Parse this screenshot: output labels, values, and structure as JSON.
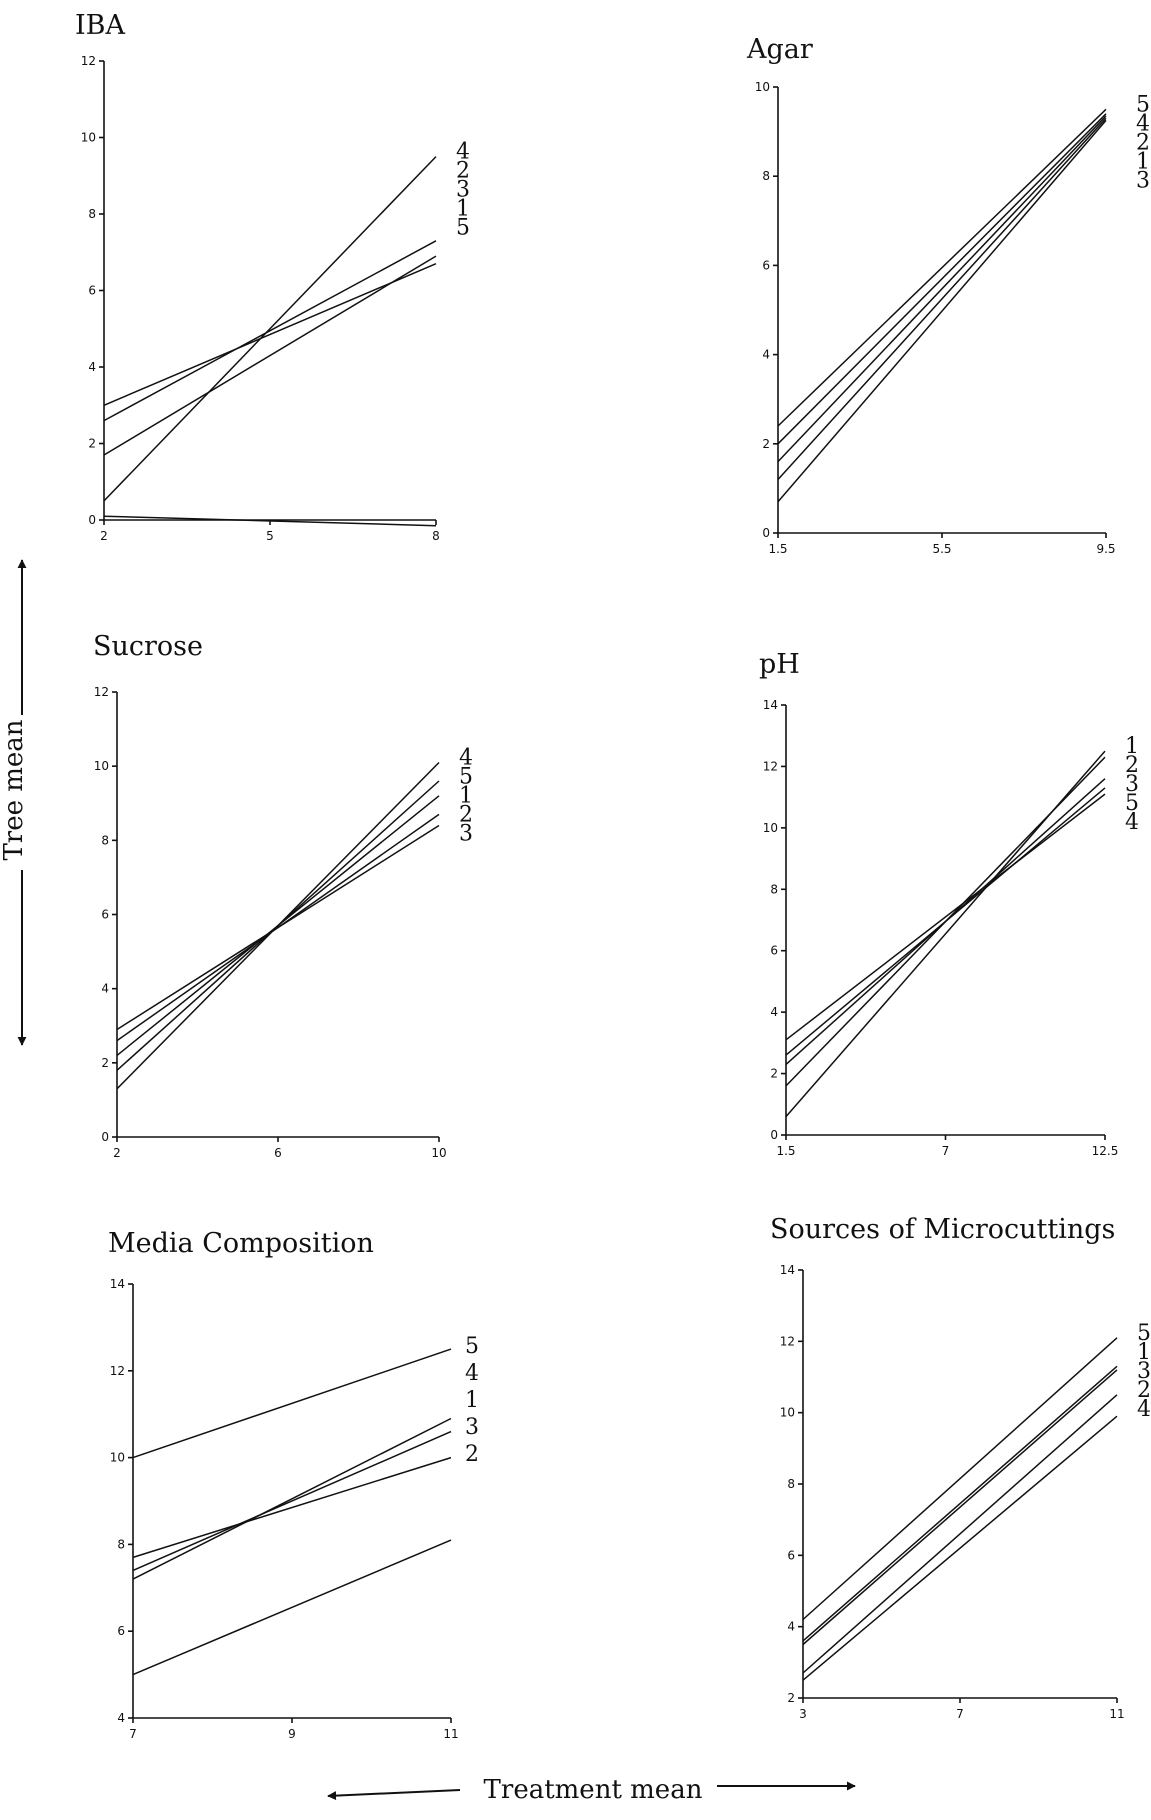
{
  "figure": {
    "ylabel": "Tree mean",
    "xlabel": "Treatment mean"
  },
  "chart_data": [
    {
      "type": "line",
      "title": "IBA",
      "xticks": [
        "2",
        "5",
        "8"
      ],
      "yticks": [
        "0",
        "2",
        "4",
        "6",
        "8",
        "10",
        "12"
      ],
      "xlim": [
        2,
        8
      ],
      "ylim": [
        0,
        12
      ],
      "grid": false,
      "line_labels": [
        "4",
        "2",
        "3",
        "1",
        "5"
      ],
      "series": [
        {
          "label": "4",
          "x": [
            2,
            8
          ],
          "y": [
            0.5,
            9.5
          ]
        },
        {
          "label": "2",
          "x": [
            2,
            8
          ],
          "y": [
            2.6,
            7.3
          ]
        },
        {
          "label": "3",
          "x": [
            2,
            8
          ],
          "y": [
            1.7,
            6.9
          ]
        },
        {
          "label": "1",
          "x": [
            2,
            8
          ],
          "y": [
            3.0,
            6.7
          ]
        },
        {
          "label": "5",
          "x": [
            2,
            8
          ],
          "y": [
            0.1,
            -0.15
          ]
        }
      ]
    },
    {
      "type": "line",
      "title": "Agar",
      "xticks": [
        "1.5",
        "5.5",
        "9.5"
      ],
      "yticks": [
        "0",
        "2",
        "4",
        "6",
        "8",
        "10"
      ],
      "xlim": [
        1.5,
        9.5
      ],
      "ylim": [
        0,
        10
      ],
      "grid": false,
      "line_labels": [
        "5",
        "4",
        "2",
        "1",
        "3"
      ],
      "series": [
        {
          "label": "5",
          "x": [
            1.5,
            9.5
          ],
          "y": [
            2.4,
            9.5
          ]
        },
        {
          "label": "4",
          "x": [
            1.5,
            9.5
          ],
          "y": [
            2.0,
            9.4
          ]
        },
        {
          "label": "2",
          "x": [
            1.5,
            9.5
          ],
          "y": [
            1.6,
            9.35
          ]
        },
        {
          "label": "1",
          "x": [
            1.5,
            9.5
          ],
          "y": [
            1.2,
            9.3
          ]
        },
        {
          "label": "3",
          "x": [
            1.5,
            9.5
          ],
          "y": [
            0.7,
            9.25
          ]
        }
      ]
    },
    {
      "type": "line",
      "title": "Sucrose",
      "xticks": [
        "2",
        "6",
        "10"
      ],
      "yticks": [
        "0",
        "2",
        "4",
        "6",
        "8",
        "10",
        "12"
      ],
      "xlim": [
        2,
        10
      ],
      "ylim": [
        0,
        12
      ],
      "grid": false,
      "line_labels": [
        "4",
        "5",
        "1",
        "2",
        "3"
      ],
      "series": [
        {
          "label": "4",
          "x": [
            2,
            10
          ],
          "y": [
            1.3,
            10.1
          ]
        },
        {
          "label": "5",
          "x": [
            2,
            10
          ],
          "y": [
            1.8,
            9.6
          ]
        },
        {
          "label": "1",
          "x": [
            2,
            10
          ],
          "y": [
            2.2,
            9.2
          ]
        },
        {
          "label": "2",
          "x": [
            2,
            10
          ],
          "y": [
            2.6,
            8.7
          ]
        },
        {
          "label": "3",
          "x": [
            2,
            10
          ],
          "y": [
            2.9,
            8.4
          ]
        }
      ]
    },
    {
      "type": "line",
      "title": "pH",
      "xticks": [
        "1.5",
        "7",
        "12.5"
      ],
      "yticks": [
        "0",
        "2",
        "4",
        "6",
        "8",
        "10",
        "12",
        "14"
      ],
      "xlim": [
        1.5,
        12.5
      ],
      "ylim": [
        0,
        14
      ],
      "grid": false,
      "line_labels": [
        "1",
        "2",
        "3",
        "5",
        "4"
      ],
      "series": [
        {
          "label": "1",
          "x": [
            1.5,
            12.5
          ],
          "y": [
            0.6,
            12.5
          ]
        },
        {
          "label": "2",
          "x": [
            1.5,
            12.5
          ],
          "y": [
            1.6,
            12.3
          ]
        },
        {
          "label": "3",
          "x": [
            1.5,
            12.5
          ],
          "y": [
            2.3,
            11.6
          ]
        },
        {
          "label": "5",
          "x": [
            1.5,
            12.5
          ],
          "y": [
            2.6,
            11.3
          ]
        },
        {
          "label": "4",
          "x": [
            1.5,
            12.5
          ],
          "y": [
            3.1,
            11.1
          ]
        }
      ]
    },
    {
      "type": "line",
      "title": "Media Composition",
      "xticks": [
        "7",
        "9",
        "11"
      ],
      "yticks": [
        "4",
        "6",
        "8",
        "10",
        "12",
        "14"
      ],
      "xlim": [
        7,
        11
      ],
      "ylim": [
        4,
        14
      ],
      "grid": false,
      "line_labels": [
        "5",
        "4",
        "1",
        "3",
        "2"
      ],
      "series": [
        {
          "label": "5",
          "x": [
            7,
            11
          ],
          "y": [
            10.0,
            12.5
          ]
        },
        {
          "label": "1",
          "x": [
            7,
            11
          ],
          "y": [
            7.2,
            10.9
          ]
        },
        {
          "label": "3",
          "x": [
            7,
            11
          ],
          "y": [
            7.4,
            10.6
          ]
        },
        {
          "label": "2",
          "x": [
            7,
            11
          ],
          "y": [
            7.7,
            10.0
          ]
        },
        {
          "label": "",
          "x": [
            7,
            11
          ],
          "y": [
            5.0,
            8.1
          ]
        }
      ]
    },
    {
      "type": "line",
      "title": "Sources of Microcuttings",
      "xticks": [
        "3",
        "7",
        "11"
      ],
      "yticks": [
        "2",
        "4",
        "6",
        "8",
        "10",
        "12",
        "14"
      ],
      "xlim": [
        3,
        11
      ],
      "ylim": [
        2,
        14
      ],
      "grid": false,
      "line_labels": [
        "5",
        "1",
        "3",
        "2",
        "4"
      ],
      "series": [
        {
          "label": "5",
          "x": [
            3,
            11
          ],
          "y": [
            4.2,
            12.1
          ]
        },
        {
          "label": "1",
          "x": [
            3,
            11
          ],
          "y": [
            3.6,
            11.3
          ]
        },
        {
          "label": "3",
          "x": [
            3,
            11
          ],
          "y": [
            3.5,
            11.2
          ]
        },
        {
          "label": "2",
          "x": [
            3,
            11
          ],
          "y": [
            2.7,
            10.5
          ]
        },
        {
          "label": "4",
          "x": [
            3,
            11
          ],
          "y": [
            2.5,
            9.9
          ]
        }
      ]
    }
  ]
}
